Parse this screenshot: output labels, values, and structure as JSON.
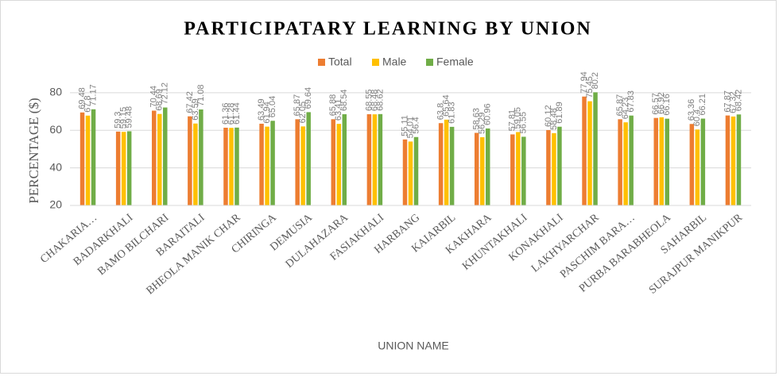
{
  "chart_data": {
    "type": "bar",
    "title": "PARTICIPATARY LEARNING BY UNION",
    "x_label": "UNION NAME",
    "y_label": "PERCENTAGE ($)",
    "categories": [
      "CHAKARIA…",
      "BADARKHALI",
      "BAMO BILCHARI",
      "BARAITALI",
      "BHEOLA MANIK CHAR",
      "CHIRINGA",
      "DEMUSIA",
      "DULAHAZARA",
      "FASIAKHALI",
      "HARBANG",
      "KAIARBIL",
      "KAKHARA",
      "KHUNTAKHALI",
      "KONAKHALI",
      "LAKHYARCHAR",
      "PASCHIM BARA…",
      "PURBA BARABHEOLA",
      "SAHARBIL",
      "SURAJPUR MANIKPUR"
    ],
    "series": [
      {
        "name": "Total",
        "color": "#ED7D31",
        "values": [
          69.48,
          59.3,
          70.44,
          67.42,
          61.36,
          63.49,
          65.87,
          65.88,
          68.55,
          55.11,
          63.8,
          58.63,
          57.81,
          60.12,
          77.94,
          65.87,
          66.57,
          63.36,
          67.87
        ]
      },
      {
        "name": "Male",
        "color": "#FFC000",
        "values": [
          67.8,
          59.15,
          68.69,
          63.59,
          61.28,
          61.94,
          62.05,
          63.41,
          68.48,
          54.01,
          65.64,
          56.29,
          59.05,
          58.48,
          75.45,
          64.23,
          66.92,
          60.4,
          67.32
        ]
      },
      {
        "name": "Female",
        "color": "#70AD47",
        "values": [
          71.17,
          59.48,
          72.12,
          71.08,
          61.44,
          65.04,
          69.64,
          68.54,
          68.62,
          56.4,
          61.83,
          60.96,
          56.55,
          61.89,
          80.2,
          67.83,
          66.16,
          66.21,
          68.42
        ]
      }
    ],
    "ylim": [
      20,
      85
    ],
    "yticks": [
      20,
      40,
      60,
      80
    ],
    "grid": true,
    "legend": "top"
  }
}
